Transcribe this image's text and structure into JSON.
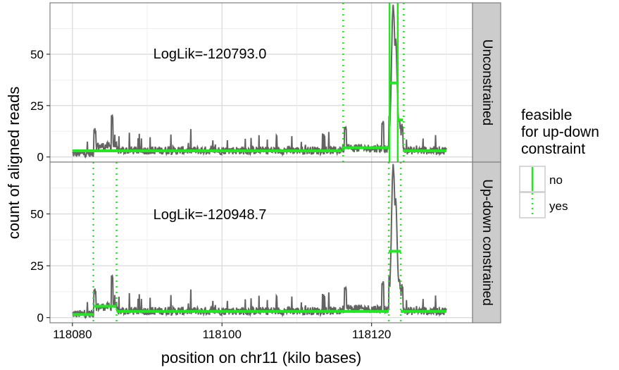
{
  "chart_data": {
    "type": "line",
    "xlabel": "position on chr11 (kilo bases)",
    "ylabel": "count of aligned reads",
    "xlim": [
      118077,
      118133.5
    ],
    "ylim": [
      -2.5,
      75
    ],
    "x_ticks": [
      118080,
      118100,
      118120
    ],
    "y_ticks": [
      0,
      25,
      50
    ],
    "grid": true,
    "panels": [
      {
        "strip": "Unconstrained",
        "annotation": "LogLik=-120793.0",
        "segments": [
          {
            "x0": 118080,
            "x1": 118116,
            "y": 3
          },
          {
            "x0": 118116,
            "x1": 118122.4,
            "y": 4.5
          },
          {
            "x0": 118122.4,
            "x1": 118123.6,
            "y": 36
          },
          {
            "x0": 118123.6,
            "x1": 118124.2,
            "y": 18
          },
          {
            "x0": 118124.2,
            "x1": 118130,
            "y": 3
          }
        ],
        "changepoints": [
          {
            "x": 118116.2,
            "feasible": "yes"
          },
          {
            "x": 118122.4,
            "feasible": "no"
          },
          {
            "x": 118123.5,
            "feasible": "no"
          },
          {
            "x": 118124.3,
            "feasible": "yes"
          }
        ]
      },
      {
        "strip": "Up-down constrained",
        "annotation": "LogLik=-120948.7",
        "segments": [
          {
            "x0": 118080,
            "x1": 118082.8,
            "y": 1.5
          },
          {
            "x0": 118082.8,
            "x1": 118085.9,
            "y": 5.5
          },
          {
            "x0": 118085.9,
            "x1": 118122.3,
            "y": 3
          },
          {
            "x0": 118122.3,
            "x1": 118123.9,
            "y": 32
          },
          {
            "x0": 118123.9,
            "x1": 118130,
            "y": 3
          }
        ],
        "changepoints": [
          {
            "x": 118082.8,
            "feasible": "yes"
          },
          {
            "x": 118085.9,
            "feasible": "yes"
          },
          {
            "x": 118122.3,
            "feasible": "yes"
          },
          {
            "x": 118123.9,
            "feasible": "yes"
          }
        ]
      }
    ],
    "coverage_peaks": [
      {
        "x": 118083,
        "y": 14
      },
      {
        "x": 118085.3,
        "y": 21
      },
      {
        "x": 118116.5,
        "y": 15
      },
      {
        "x": 118121.5,
        "y": 18
      },
      {
        "x": 118122.9,
        "y": 72
      },
      {
        "x": 118123.2,
        "y": 55
      }
    ],
    "legend": {
      "title": "feasible\nfor up-down\nconstraint",
      "placement": "right",
      "entries": [
        {
          "label": "no",
          "style": "solid"
        },
        {
          "label": "yes",
          "style": "dotted"
        }
      ]
    },
    "colors": {
      "coverage": "#636363",
      "segments": "#22e822",
      "panel_bg": "#ffffff",
      "grid": "#ebebeb",
      "strip_bg": "#cccccc",
      "border": "#808080"
    }
  }
}
